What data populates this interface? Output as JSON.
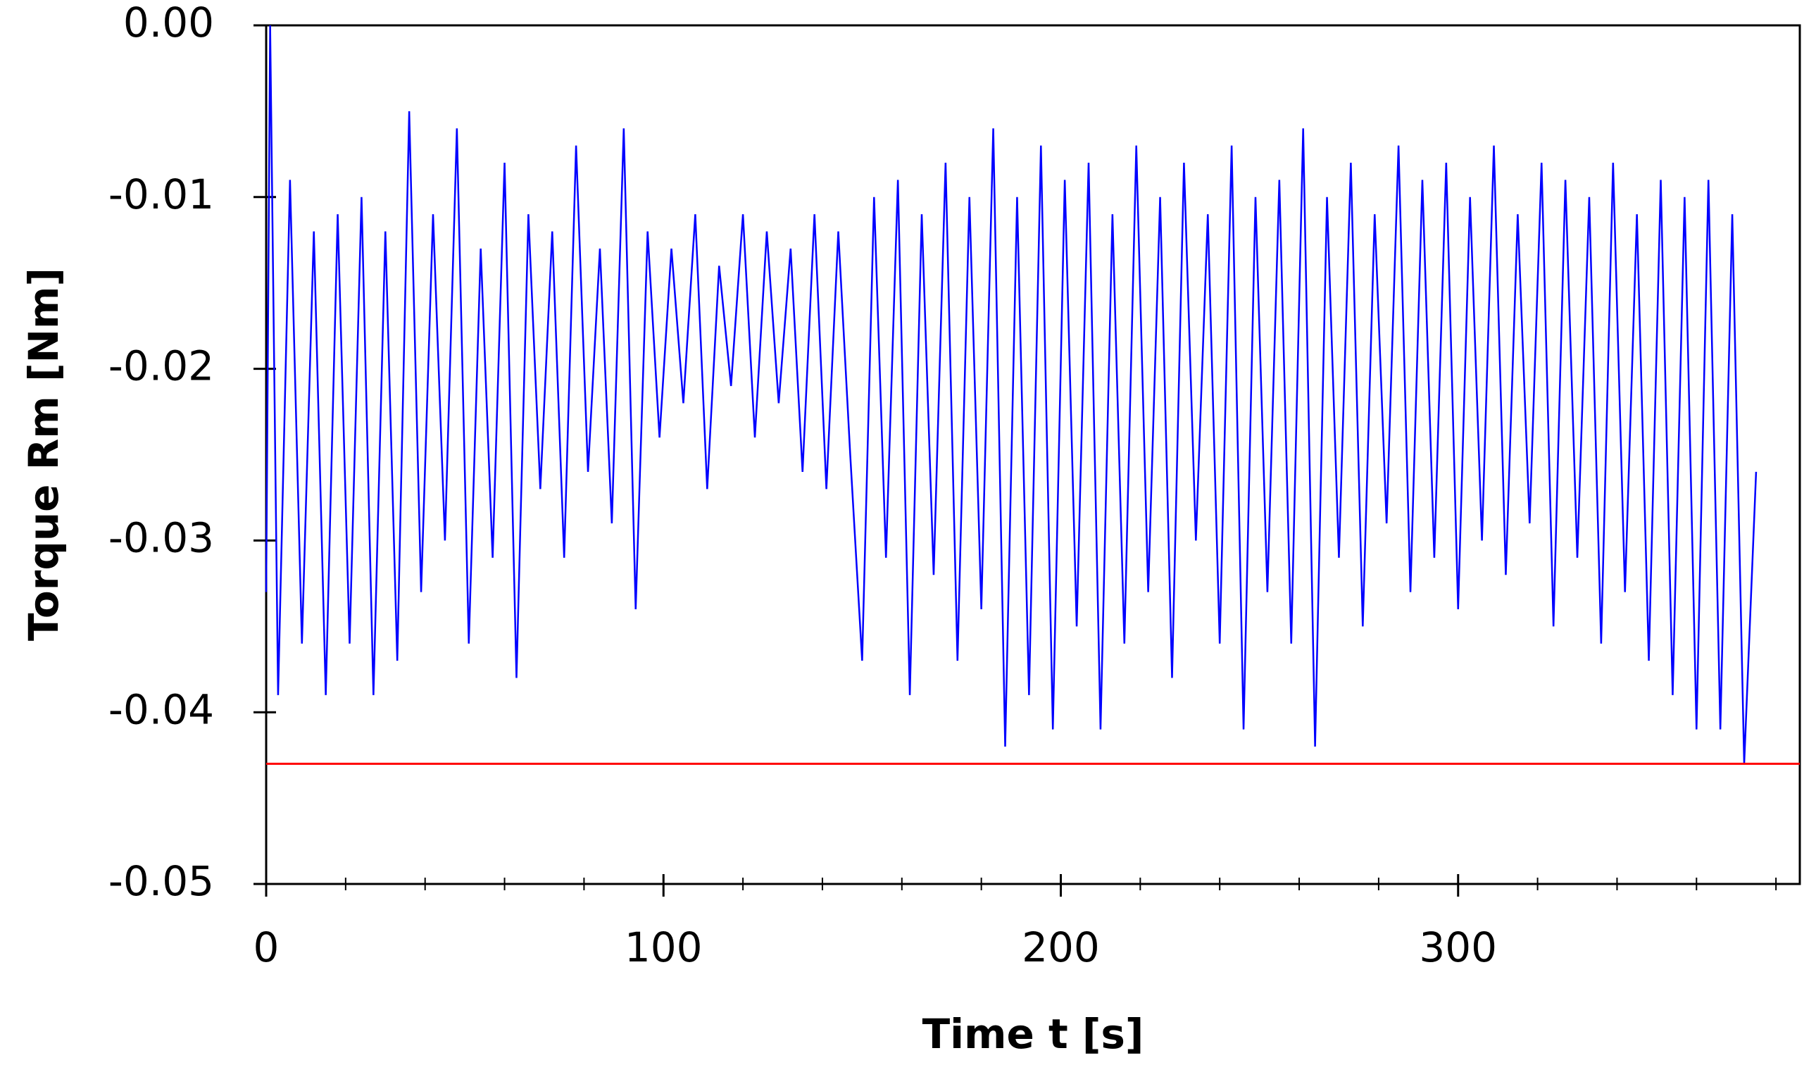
{
  "chart_data": {
    "type": "line",
    "xlabel": "Time t [s]",
    "ylabel": "Torque Rm [Nm]",
    "x": [
      0,
      1,
      3,
      6,
      9,
      12,
      15,
      18,
      21,
      24,
      27,
      30,
      33,
      36,
      39,
      42,
      45,
      48,
      51,
      54,
      57,
      60,
      63,
      66,
      69,
      72,
      75,
      78,
      81,
      84,
      87,
      90,
      93,
      96,
      99,
      102,
      105,
      108,
      111,
      114,
      117,
      120,
      123,
      126,
      129,
      132,
      135,
      138,
      141,
      144,
      147,
      150,
      153,
      156,
      159,
      162,
      165,
      168,
      171,
      174,
      177,
      180,
      183,
      186,
      189,
      192,
      195,
      198,
      201,
      204,
      207,
      210,
      213,
      216,
      219,
      222,
      225,
      228,
      231,
      234,
      237,
      240,
      243,
      246,
      249,
      252,
      255,
      258,
      261,
      264,
      267,
      270,
      273,
      276,
      279,
      282,
      285,
      288,
      291,
      294,
      297,
      300,
      303,
      306,
      309,
      312,
      315,
      318,
      321,
      324,
      327,
      330,
      333,
      336,
      339,
      342,
      345,
      348,
      351,
      354,
      357,
      360,
      363,
      366,
      369,
      372,
      375
    ],
    "series": [
      {
        "color": "#0000ff",
        "values": [
          -0.033,
          0.0,
          -0.039,
          -0.009,
          -0.036,
          -0.012,
          -0.039,
          -0.011,
          -0.036,
          -0.01,
          -0.039,
          -0.012,
          -0.037,
          -0.005,
          -0.033,
          -0.011,
          -0.03,
          -0.006,
          -0.036,
          -0.013,
          -0.031,
          -0.008,
          -0.038,
          -0.011,
          -0.027,
          -0.012,
          -0.031,
          -0.007,
          -0.026,
          -0.013,
          -0.029,
          -0.006,
          -0.034,
          -0.012,
          -0.024,
          -0.013,
          -0.022,
          -0.011,
          -0.027,
          -0.014,
          -0.021,
          -0.011,
          -0.024,
          -0.012,
          -0.022,
          -0.013,
          -0.026,
          -0.011,
          -0.027,
          -0.012,
          -0.025,
          -0.037,
          -0.01,
          -0.031,
          -0.009,
          -0.039,
          -0.011,
          -0.032,
          -0.008,
          -0.037,
          -0.01,
          -0.034,
          -0.006,
          -0.042,
          -0.01,
          -0.039,
          -0.007,
          -0.041,
          -0.009,
          -0.035,
          -0.008,
          -0.041,
          -0.011,
          -0.036,
          -0.007,
          -0.033,
          -0.01,
          -0.038,
          -0.008,
          -0.03,
          -0.011,
          -0.036,
          -0.007,
          -0.041,
          -0.01,
          -0.033,
          -0.009,
          -0.036,
          -0.006,
          -0.042,
          -0.01,
          -0.031,
          -0.008,
          -0.035,
          -0.011,
          -0.029,
          -0.007,
          -0.033,
          -0.009,
          -0.031,
          -0.008,
          -0.034,
          -0.01,
          -0.03,
          -0.007,
          -0.032,
          -0.011,
          -0.029,
          -0.008,
          -0.035,
          -0.009,
          -0.031,
          -0.01,
          -0.036,
          -0.008,
          -0.033,
          -0.011,
          -0.037,
          -0.009,
          -0.039,
          -0.01,
          -0.041,
          -0.009,
          -0.041,
          -0.011,
          -0.043,
          -0.026
        ]
      }
    ],
    "reference_line": {
      "value": -0.043,
      "color": "#ff0000"
    },
    "xlim": [
      0,
      386
    ],
    "xticks": [
      0,
      100,
      200,
      300
    ],
    "xminorticks": [
      20,
      40,
      60,
      80,
      120,
      140,
      160,
      180,
      220,
      240,
      260,
      280,
      320,
      340,
      360,
      380
    ],
    "ylim": [
      -0.05,
      0
    ],
    "yticks": [
      {
        "value": 0,
        "label": "0.00"
      },
      -0.01,
      -0.02,
      -0.03,
      -0.04,
      -0.05
    ]
  }
}
